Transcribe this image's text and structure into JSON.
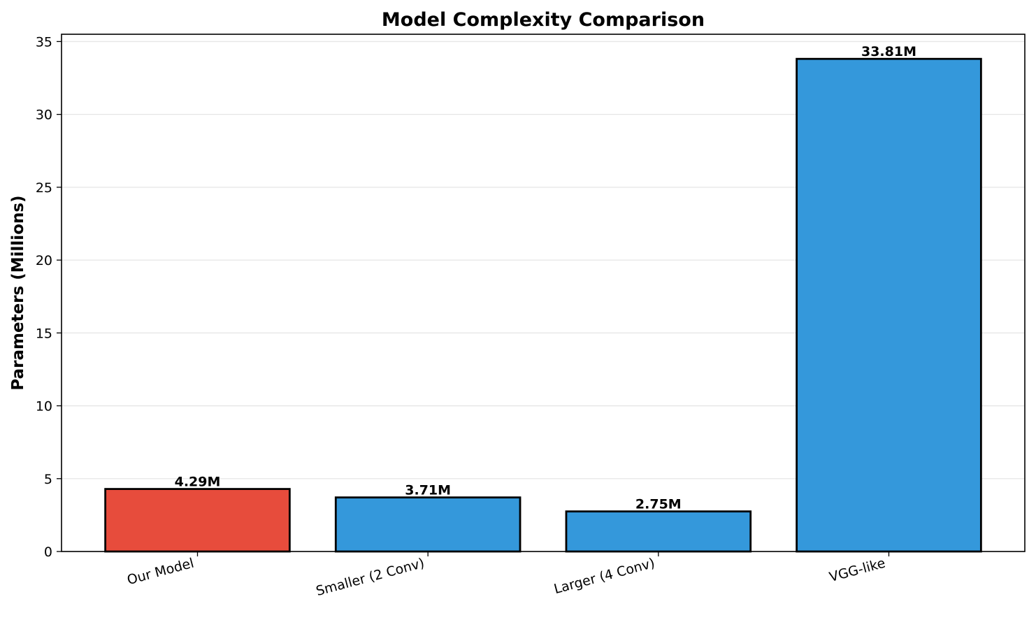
{
  "chart_data": {
    "type": "bar",
    "title": "Model Complexity Comparison",
    "xlabel": "",
    "ylabel": "Parameters (Millions)",
    "categories": [
      "Our Model",
      "Smaller (2 Conv)",
      "Larger (4 Conv)",
      "VGG-like"
    ],
    "values": [
      4.29,
      3.71,
      2.75,
      33.81
    ],
    "value_labels": [
      "4.29M",
      "3.71M",
      "2.75M",
      "33.81M"
    ],
    "bar_colors": [
      "#e74c3c",
      "#3498db",
      "#3498db",
      "#3498db"
    ],
    "edge_color": "#000000",
    "ylim": [
      0,
      35.5
    ],
    "yticks": [
      0,
      5,
      10,
      15,
      20,
      25,
      30,
      35
    ],
    "grid": "y-axis, light gray",
    "legend": "none"
  }
}
